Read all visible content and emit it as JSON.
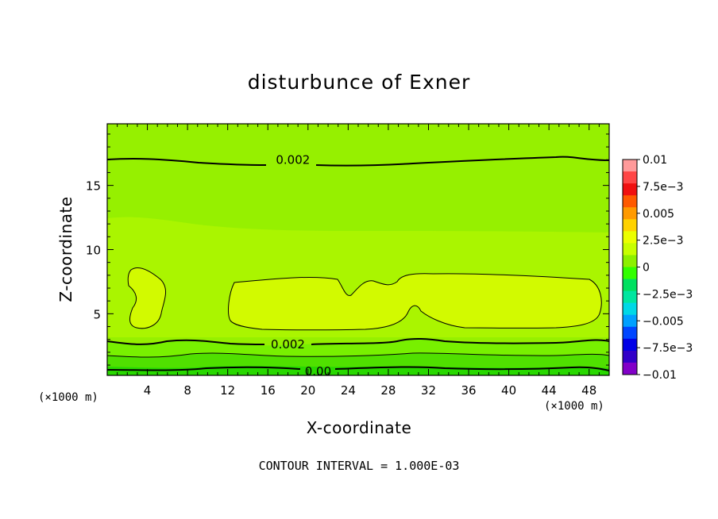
{
  "chart_data": {
    "type": "contour",
    "title": "disturbunce of Exner",
    "xlabel": "X-coordinate",
    "ylabel": "Z-coordinate",
    "x_unit": "(×1000 m)",
    "y_unit": "(×1000 m)",
    "xlim": [
      0,
      50
    ],
    "ylim": [
      0.2,
      19.8
    ],
    "x_ticks": [
      "4",
      "8",
      "12",
      "16",
      "20",
      "24",
      "28",
      "32",
      "36",
      "40",
      "44",
      "48"
    ],
    "y_ticks": [
      "5",
      "10",
      "15"
    ],
    "contour_interval_text": "CONTOUR INTERVAL = 1.000E-03",
    "contour_labels": [
      {
        "text": "0.002",
        "x": 18.5,
        "z": 17.0
      },
      {
        "text": "0.002",
        "x": 18.0,
        "z": 2.6
      },
      {
        "text": "0.00",
        "x": 21.0,
        "z": 0.5
      }
    ],
    "colorbar": {
      "labels": [
        "0.01",
        "7.5e-3",
        "0.005",
        "2.5e-3",
        "0",
        "-2.5e-3",
        "-0.005",
        "-7.5e-3",
        "-0.01"
      ],
      "colors": [
        "#ff9a9a",
        "#ff4646",
        "#f01010",
        "#ff5a00",
        "#ff9a00",
        "#ffd200",
        "#ecff00",
        "#c8ff00",
        "#8cf000",
        "#32ff00",
        "#00e060",
        "#00e6a0",
        "#00d8e6",
        "#00a0ff",
        "#0046ff",
        "#0000e6",
        "#3200c8",
        "#8200c8"
      ]
    },
    "fill_colors": {
      "upper": "#96f000",
      "band": "#aaf500",
      "core": "#d2fa00",
      "low1": "#78f000",
      "low2": "#50e000",
      "low3": "#28d800"
    },
    "grid": false
  }
}
